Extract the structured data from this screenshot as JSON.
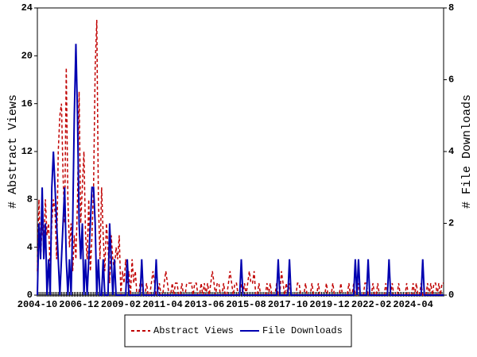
{
  "chart_data": {
    "type": "line",
    "ylabel": "# Abstract Views",
    "y2label": "# File Downloads",
    "categories": [
      "2004-10",
      null,
      null,
      null,
      null,
      null,
      null,
      null,
      null,
      null,
      null,
      null,
      null,
      null,
      null,
      null,
      null,
      null,
      null,
      null,
      null,
      null,
      null,
      null,
      null,
      null,
      "2006-12",
      null,
      null,
      null,
      null,
      null,
      null,
      null,
      null,
      null,
      null,
      null,
      null,
      null,
      null,
      null,
      null,
      null,
      null,
      null,
      null,
      null,
      null,
      null,
      null,
      null,
      "2009-02",
      null,
      null,
      null,
      null,
      null,
      null,
      null,
      null,
      null,
      null,
      null,
      null,
      null,
      null,
      null,
      null,
      null,
      null,
      null,
      null,
      null,
      null,
      null,
      null,
      null,
      "2011-04",
      null,
      null,
      null,
      null,
      null,
      null,
      null,
      null,
      null,
      null,
      null,
      null,
      null,
      null,
      null,
      null,
      null,
      null,
      null,
      null,
      null,
      null,
      null,
      null,
      null,
      "2013-06",
      null,
      null,
      null,
      null,
      null,
      null,
      null,
      null,
      null,
      null,
      null,
      null,
      null,
      null,
      null,
      null,
      null,
      null,
      null,
      null,
      null,
      null,
      null,
      null,
      null,
      "2015-08",
      null,
      null,
      null,
      null,
      null,
      null,
      null,
      null,
      null,
      null,
      null,
      null,
      null,
      null,
      null,
      null,
      null,
      null,
      null,
      null,
      null,
      null,
      null,
      null,
      null,
      "2017-10",
      null,
      null,
      null,
      null,
      null,
      null,
      null,
      null,
      null,
      null,
      null,
      null,
      null,
      null,
      null,
      null,
      null,
      null,
      null,
      null,
      null,
      null,
      null,
      null,
      null,
      "2019-12",
      null,
      null,
      null,
      null,
      null,
      null,
      null,
      null,
      null,
      null,
      null,
      null,
      null,
      null,
      null,
      null,
      null,
      null,
      null,
      null,
      null,
      null,
      null,
      null,
      null,
      "2022-02",
      null,
      null,
      null,
      null,
      null,
      null,
      null,
      null,
      null,
      null,
      null,
      null,
      null,
      null,
      null,
      null,
      null,
      null,
      null,
      null,
      null,
      null,
      null,
      null,
      null,
      "2024-04",
      null,
      null,
      null,
      null,
      null,
      null,
      null,
      null,
      null,
      null,
      null,
      null,
      null,
      null,
      null,
      null,
      null,
      null,
      null
    ],
    "series": [
      {
        "name": "Abstract Views",
        "color": "#c00000",
        "dash": true,
        "values": [
          2,
          8,
          3,
          6,
          4,
          8,
          5,
          6,
          2,
          6,
          8,
          7,
          3,
          12,
          15,
          16,
          10,
          6,
          19,
          8,
          4,
          6,
          2,
          5,
          3,
          8,
          17,
          6,
          9,
          12,
          5,
          3,
          8,
          2,
          5,
          9,
          19,
          23,
          8,
          3,
          9,
          5,
          2,
          6,
          4,
          1,
          5,
          3,
          2,
          4,
          3,
          5,
          0,
          2,
          1,
          3,
          1,
          2,
          0,
          3,
          1,
          2,
          0,
          0,
          1,
          1,
          0,
          0,
          1,
          0,
          0,
          1,
          2,
          1,
          0,
          0,
          1,
          0,
          0,
          1,
          2,
          1,
          0,
          0,
          1,
          0,
          1,
          1,
          0,
          0,
          1,
          0,
          0,
          1,
          1,
          1,
          1,
          0,
          1,
          1,
          0,
          0,
          1,
          0,
          1,
          0,
          1,
          0,
          1,
          2,
          1,
          0,
          1,
          1,
          0,
          0,
          1,
          0,
          0,
          1,
          2,
          1,
          0,
          1,
          1,
          0,
          0,
          1,
          0,
          1,
          0,
          1,
          2,
          1,
          1,
          2,
          0,
          0,
          1,
          0,
          0,
          0,
          0,
          1,
          0,
          1,
          0,
          0,
          0,
          1,
          0,
          0,
          2,
          1,
          0,
          1,
          0,
          1,
          0,
          0,
          0,
          0,
          1,
          1,
          0,
          0,
          0,
          1,
          0,
          0,
          0,
          1,
          0,
          0,
          0,
          1,
          0,
          0,
          0,
          0,
          1,
          0,
          0,
          0,
          1,
          0,
          0,
          0,
          0,
          1,
          0,
          0,
          0,
          0,
          1,
          0,
          0,
          1,
          0,
          0,
          1,
          0,
          0,
          0,
          1,
          1,
          0,
          0,
          0,
          1,
          0,
          0,
          1,
          0,
          0,
          0,
          0,
          1,
          0,
          0,
          0,
          1,
          0,
          0,
          0,
          1,
          0,
          0,
          0,
          0,
          1,
          0,
          0,
          0,
          1,
          0,
          1,
          0,
          0,
          1,
          0,
          0,
          0,
          1,
          0,
          1,
          0,
          1,
          1,
          0,
          1,
          0,
          1,
          1
        ]
      },
      {
        "name": "File Downloads",
        "color": "#0000b0",
        "axis": "y2",
        "values": [
          0,
          2,
          1,
          3,
          1,
          2,
          0,
          1,
          0,
          3,
          4,
          3,
          2,
          1,
          0,
          1,
          2,
          3,
          1,
          0,
          1,
          0,
          2,
          5,
          7,
          5,
          2,
          1,
          2,
          0,
          1,
          0,
          1,
          2,
          3,
          3,
          2,
          0,
          1,
          0,
          0,
          1,
          0,
          0,
          0,
          2,
          1,
          0,
          1,
          0,
          0,
          0,
          0,
          0,
          0,
          0,
          1,
          0,
          0,
          0,
          0,
          0,
          0,
          0,
          0,
          1,
          0,
          0,
          0,
          0,
          0,
          0,
          0,
          0,
          1,
          0,
          0,
          0,
          0,
          0,
          0,
          0,
          0,
          0,
          0,
          0,
          0,
          0,
          0,
          0,
          0,
          0,
          0,
          0,
          0,
          0,
          0,
          0,
          0,
          0,
          0,
          0,
          0,
          0,
          0,
          0,
          0,
          0,
          0,
          0,
          0,
          0,
          0,
          0,
          0,
          0,
          0,
          0,
          0,
          0,
          0,
          0,
          0,
          0,
          0,
          0,
          0,
          1,
          0,
          0,
          0,
          0,
          0,
          0,
          0,
          0,
          0,
          0,
          0,
          0,
          0,
          0,
          0,
          0,
          0,
          0,
          0,
          0,
          0,
          0,
          1,
          0,
          0,
          0,
          0,
          0,
          0,
          1,
          0,
          0,
          0,
          0,
          0,
          0,
          0,
          0,
          0,
          0,
          0,
          0,
          0,
          0,
          0,
          0,
          0,
          0,
          0,
          0,
          0,
          0,
          0,
          0,
          0,
          0,
          0,
          0,
          0,
          0,
          0,
          0,
          0,
          0,
          0,
          0,
          0,
          0,
          0,
          0,
          1,
          0,
          1,
          0,
          0,
          0,
          0,
          0,
          1,
          0,
          0,
          0,
          0,
          0,
          0,
          0,
          0,
          0,
          0,
          0,
          0,
          1,
          0,
          0,
          0,
          0,
          0,
          0,
          0,
          0,
          0,
          0,
          0,
          0,
          0,
          0,
          0,
          0,
          0,
          0,
          0,
          0,
          1,
          0,
          0,
          0,
          0,
          0,
          0,
          0,
          0,
          0,
          0,
          0,
          0,
          0
        ]
      }
    ],
    "ylim": [
      0,
      24
    ],
    "yticks": [
      0,
      4,
      8,
      12,
      16,
      20,
      24
    ],
    "y2lim": [
      0,
      8
    ],
    "y2ticks": [
      0,
      2,
      4,
      6,
      8
    ]
  }
}
